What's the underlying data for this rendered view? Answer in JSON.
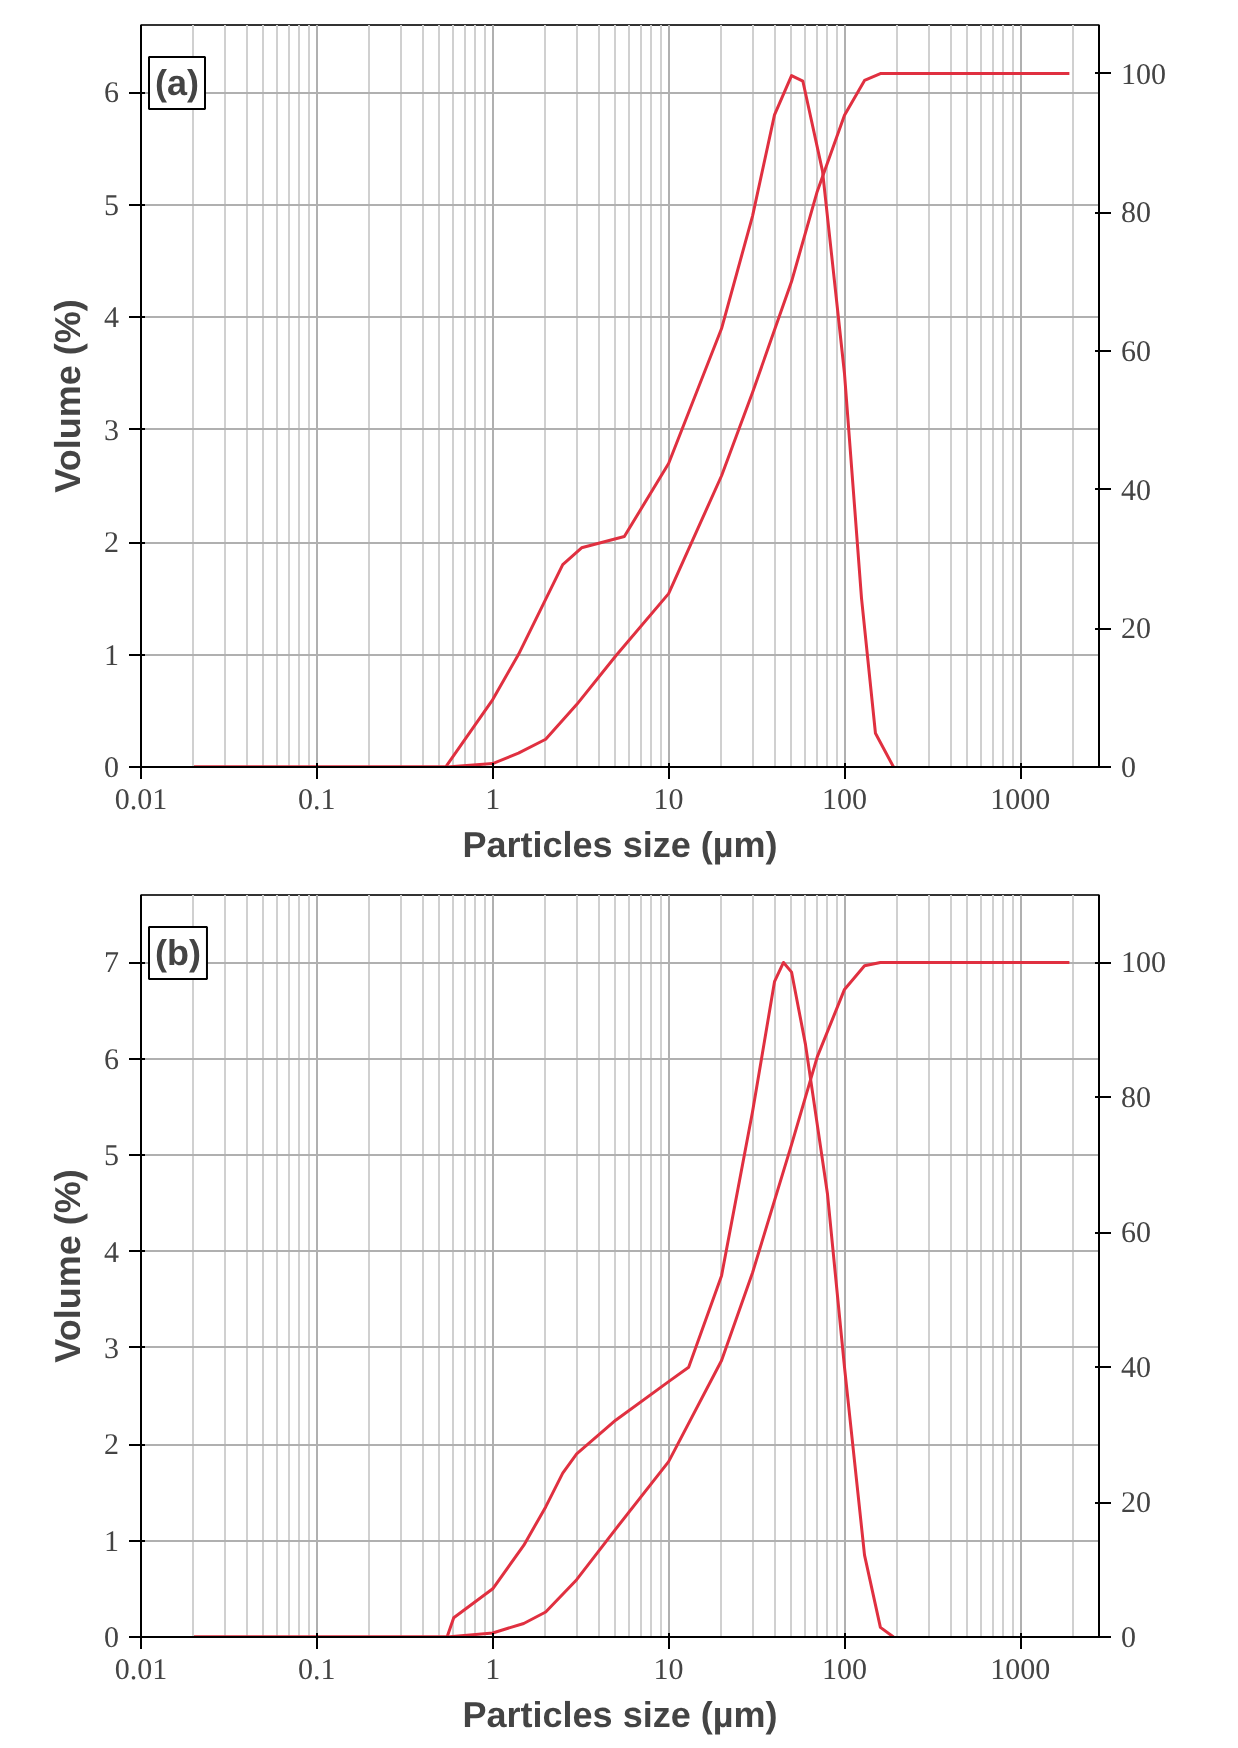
{
  "chart_data": [
    {
      "type": "line",
      "annotations": [
        "(a)"
      ],
      "xlabel": "Particles size (µm)",
      "ylabel": "Volume (%)",
      "log": "x",
      "grid": true,
      "line_style": "solid",
      "xlim": [
        0.01,
        2800
      ],
      "xticks": [
        0.01,
        0.1,
        1,
        10,
        100,
        1000
      ],
      "ylim": [
        0,
        6.6
      ],
      "yticks": [
        0,
        1,
        2,
        3,
        4,
        5,
        6
      ],
      "y2lim": [
        0,
        107
      ],
      "y2ticks": [
        0,
        20,
        40,
        60,
        80,
        100
      ],
      "series": [
        {
          "color": "#e03040",
          "x": [
            0.02,
            0.54,
            1,
            1.4,
            2.5,
            3.2,
            5.6,
            10,
            20,
            30,
            40,
            50,
            58,
            75,
            100,
            125,
            150,
            190
          ],
          "values": [
            0,
            0,
            0.6,
            1.0,
            1.8,
            1.95,
            2.05,
            2.7,
            3.9,
            4.9,
            5.8,
            6.15,
            6.1,
            5.3,
            3.5,
            1.5,
            0.3,
            0
          ]
        },
        {
          "color": "#e03040",
          "axis": "y2",
          "x": [
            0.02,
            0.55,
            1,
            1.4,
            2,
            3,
            5,
            10,
            20,
            30,
            50,
            70,
            100,
            130,
            160,
            1900
          ],
          "values": [
            0,
            0,
            0.5,
            2,
            4,
            9,
            16,
            25,
            42,
            54,
            70,
            83,
            94,
            99,
            100,
            100
          ]
        }
      ]
    },
    {
      "type": "line",
      "annotations": [
        "(b)"
      ],
      "xlabel": "Particles size (µm)",
      "ylabel": "Volume (%)",
      "log": "x",
      "grid": true,
      "line_style": "solid",
      "xlim": [
        0.01,
        2800
      ],
      "xticks": [
        0.01,
        0.1,
        1,
        10,
        100,
        1000
      ],
      "ylim": [
        0,
        7.7
      ],
      "yticks": [
        0,
        1,
        2,
        3,
        4,
        5,
        6,
        7
      ],
      "y2lim": [
        0,
        110
      ],
      "y2ticks": [
        0,
        20,
        40,
        60,
        80,
        100
      ],
      "series": [
        {
          "color": "#e03040",
          "x": [
            0.02,
            0.55,
            0.6,
            1,
            1.5,
            2,
            2.5,
            3,
            5,
            10,
            13,
            20,
            30,
            40,
            45,
            50,
            60,
            80,
            100,
            130,
            160,
            190
          ],
          "values": [
            0,
            0,
            0.2,
            0.5,
            0.95,
            1.35,
            1.7,
            1.9,
            2.25,
            2.65,
            2.8,
            3.75,
            5.45,
            6.8,
            7.0,
            6.9,
            6.15,
            4.6,
            2.8,
            0.85,
            0.1,
            0
          ]
        },
        {
          "color": "#e03040",
          "axis": "y2",
          "x": [
            0.02,
            0.55,
            1,
            1.5,
            2,
            3,
            5,
            10,
            20,
            30,
            50,
            70,
            100,
            130,
            160,
            1900
          ],
          "values": [
            0,
            0,
            0.6,
            2,
            3.7,
            8.5,
            16,
            26,
            41,
            54,
            73,
            86,
            96,
            99.5,
            100,
            100
          ]
        }
      ]
    }
  ]
}
